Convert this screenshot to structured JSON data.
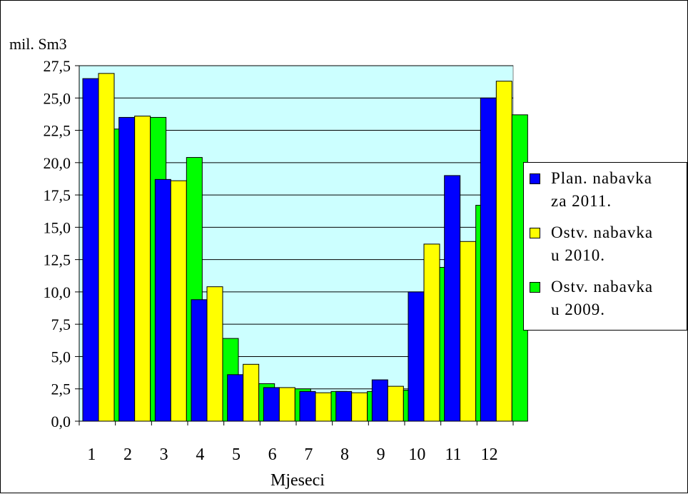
{
  "chart_data": {
    "type": "bar",
    "ylabel": "mil. Sm3",
    "xlabel": "Mjeseci",
    "categories": [
      "1",
      "2",
      "3",
      "4",
      "5",
      "6",
      "7",
      "8",
      "9",
      "10",
      "11",
      "12"
    ],
    "ylim": [
      0,
      27.5
    ],
    "yticks": [
      "0,0",
      "2,5",
      "5,0",
      "7,5",
      "10,0",
      "12,5",
      "15,0",
      "17,5",
      "20,0",
      "22,5",
      "25,0",
      "27,5"
    ],
    "grid": true,
    "plot_background": "#ccffff",
    "legend_position": "right",
    "series": [
      {
        "name": "Plan. nabavka za 2011.",
        "color": "#0000ff",
        "values": [
          26.5,
          23.5,
          18.7,
          9.4,
          3.6,
          2.6,
          2.3,
          2.3,
          3.2,
          10.0,
          19.0,
          25.0
        ]
      },
      {
        "name": "Ostv. nabavka u 2010.",
        "color": "#ffff00",
        "values": [
          26.9,
          23.6,
          18.6,
          10.4,
          4.4,
          2.6,
          2.2,
          2.2,
          2.7,
          13.7,
          13.9,
          26.3
        ]
      },
      {
        "name": "Ostv. nabavka u 2009.",
        "color": "#00ff00",
        "values": [
          22.6,
          23.5,
          20.4,
          6.4,
          2.9,
          2.5,
          2.3,
          2.3,
          2.4,
          11.9,
          16.7,
          23.7
        ]
      }
    ]
  },
  "legend": {
    "items": [
      {
        "label": "Plan. nabavka\nza 2011."
      },
      {
        "label": "Ostv. nabavka\nu 2010."
      },
      {
        "label": "Ostv. nabavka\nu 2009."
      }
    ]
  }
}
